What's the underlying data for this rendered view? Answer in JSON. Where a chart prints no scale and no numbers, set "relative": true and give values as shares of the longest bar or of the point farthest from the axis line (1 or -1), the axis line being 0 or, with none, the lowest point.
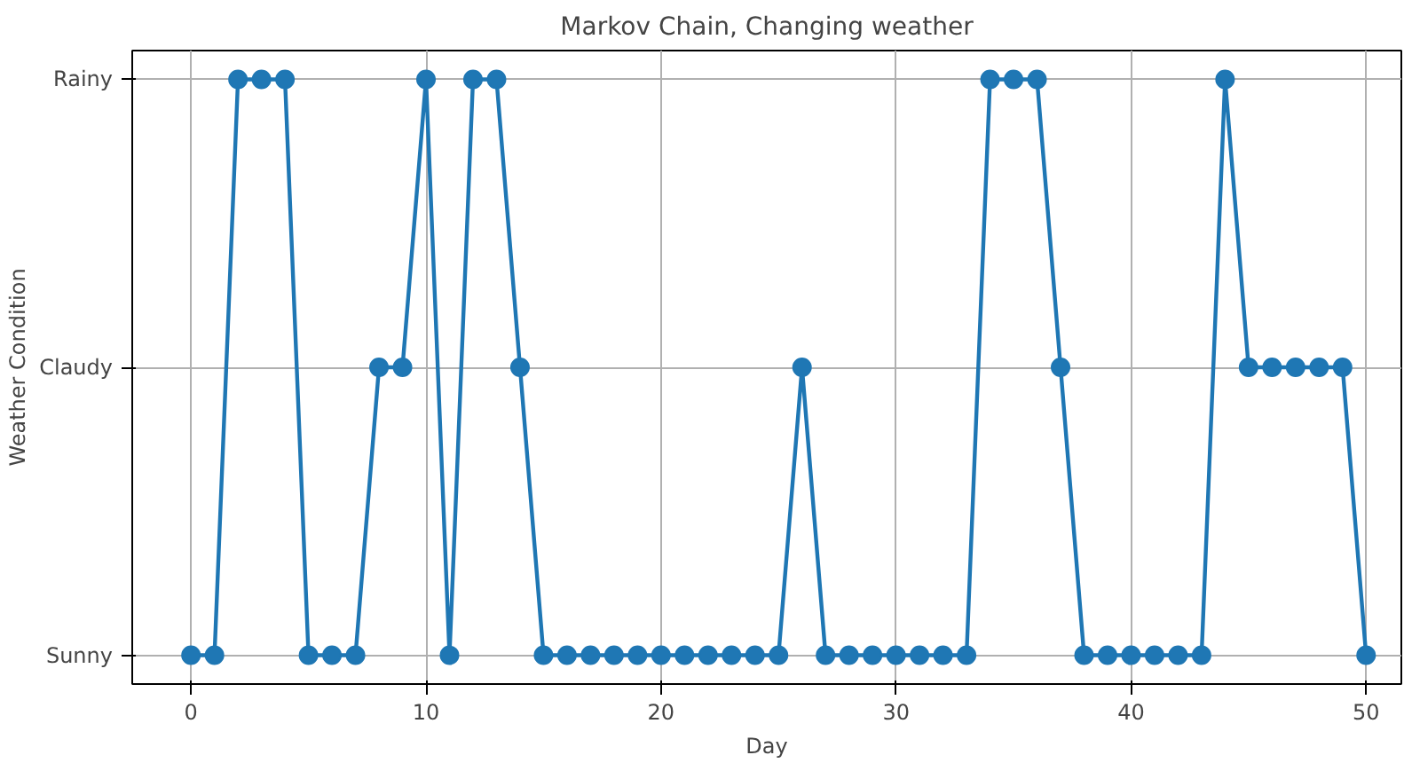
{
  "chart_data": {
    "type": "line",
    "title": "Markov Chain, Changing weather",
    "xlabel": "Day",
    "ylabel": "Weather Condition",
    "relative": true,
    "x": [
      0,
      1,
      2,
      3,
      4,
      5,
      6,
      7,
      8,
      9,
      10,
      11,
      12,
      13,
      14,
      15,
      16,
      17,
      18,
      19,
      20,
      21,
      22,
      23,
      24,
      25,
      26,
      27,
      28,
      29,
      30,
      31,
      32,
      33,
      34,
      35,
      36,
      37,
      38,
      39,
      40,
      41,
      42,
      43,
      44,
      45,
      46,
      47,
      48,
      49,
      50
    ],
    "series": [
      {
        "color": "#1f77b4",
        "values": [
          0,
          0,
          1,
          1,
          1,
          0,
          0,
          0,
          0.5,
          0.5,
          1,
          0,
          1,
          1,
          0.5,
          0,
          0,
          0,
          0,
          0,
          0,
          0,
          0,
          0,
          0,
          0,
          0.5,
          0,
          0,
          0,
          0,
          0,
          0,
          0,
          1,
          1,
          1,
          0.5,
          0,
          0,
          0,
          0,
          0,
          0,
          1,
          0.5,
          0.5,
          0.5,
          0.5,
          0.5,
          0
        ]
      }
    ],
    "xlim": [
      -2.5,
      51.5
    ],
    "xticks": [
      0,
      10,
      20,
      30,
      40,
      50
    ],
    "annotations": [
      "Sunny",
      "Claudy",
      "Rainy"
    ],
    "grid": true,
    "marker": "circle",
    "line_style": "solid"
  }
}
